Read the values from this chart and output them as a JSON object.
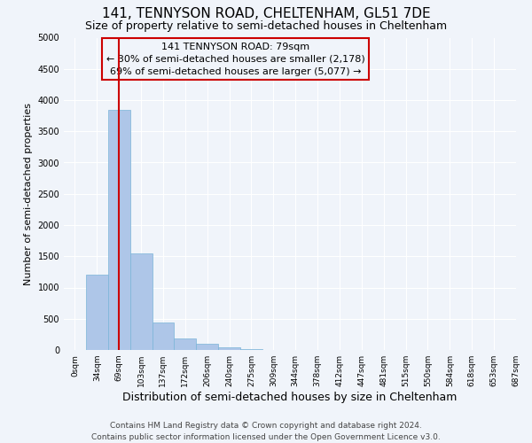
{
  "title": "141, TENNYSON ROAD, CHELTENHAM, GL51 7DE",
  "subtitle": "Size of property relative to semi-detached houses in Cheltenham",
  "xlabel": "Distribution of semi-detached houses by size in Cheltenham",
  "ylabel": "Number of semi-detached properties",
  "bin_labels": [
    "0sqm",
    "34sqm",
    "69sqm",
    "103sqm",
    "137sqm",
    "172sqm",
    "206sqm",
    "240sqm",
    "275sqm",
    "309sqm",
    "344sqm",
    "378sqm",
    "412sqm",
    "447sqm",
    "481sqm",
    "515sqm",
    "550sqm",
    "584sqm",
    "618sqm",
    "653sqm",
    "687sqm"
  ],
  "bar_heights": [
    0,
    1200,
    3850,
    1550,
    440,
    190,
    100,
    40,
    10,
    0,
    0,
    0,
    0,
    0,
    0,
    0,
    0,
    0,
    0,
    0
  ],
  "bar_color": "#aec6e8",
  "bar_edge_color": "#7ab4d8",
  "marker_label": "141 TENNYSON ROAD: 79sqm",
  "annotation_line1": "← 30% of semi-detached houses are smaller (2,178)",
  "annotation_line2": "69% of semi-detached houses are larger (5,077) →",
  "marker_color": "#cc0000",
  "box_edge_color": "#cc0000",
  "ylim": [
    0,
    5000
  ],
  "yticks": [
    0,
    500,
    1000,
    1500,
    2000,
    2500,
    3000,
    3500,
    4000,
    4500,
    5000
  ],
  "footer_line1": "Contains HM Land Registry data © Crown copyright and database right 2024.",
  "footer_line2": "Contains public sector information licensed under the Open Government Licence v3.0.",
  "background_color": "#f0f4fa",
  "title_fontsize": 11,
  "subtitle_fontsize": 9,
  "xlabel_fontsize": 9,
  "ylabel_fontsize": 8,
  "footer_fontsize": 6.5,
  "annotation_fontsize": 8,
  "tick_fontsize": 6.5
}
